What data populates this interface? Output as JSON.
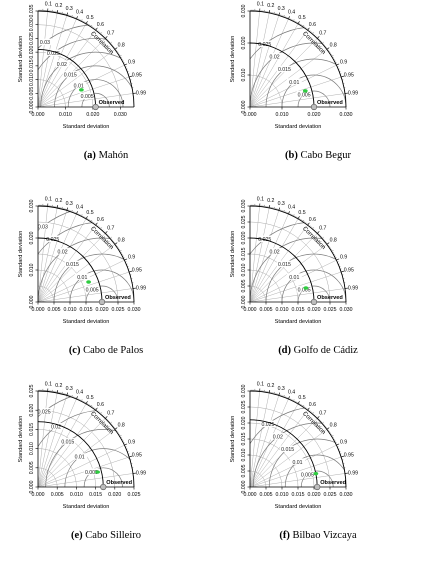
{
  "figure": {
    "common": {
      "xlabel": "Standard deviation",
      "ylabel": "Standard deviation",
      "arc_label": "Correlation",
      "ref_label": "Observed",
      "corr_labels": [
        "0.1",
        "0.2",
        "0.3",
        "0.4",
        "0.5",
        "0.6",
        "0.7",
        "0.8",
        "0.9",
        "0.95",
        "0.99"
      ],
      "model_color": "#2ecc40"
    }
  },
  "chart_data": [
    {
      "type": "scatter",
      "subtype": "taylor",
      "panel_id": "(a)",
      "caption": "Mahón",
      "axis_max": 0.035,
      "xticks": [
        "0.000",
        "0.010",
        "0.020",
        "0.030"
      ],
      "yticks": [
        "0.000",
        "0.005",
        "0.010",
        "0.015",
        "0.020",
        "0.025",
        "0.030",
        "0.035"
      ],
      "observed_std": 0.021,
      "rmsd_levels": [
        0.005,
        0.01,
        0.015,
        0.02,
        0.025,
        0.03
      ],
      "model": {
        "std": 0.017,
        "corr": 0.93
      }
    },
    {
      "type": "scatter",
      "subtype": "taylor",
      "panel_id": "(b)",
      "caption": "Cabo Begur",
      "axis_max": 0.03,
      "xticks": [
        "0.000",
        "0.010",
        "0.020",
        "0.030"
      ],
      "yticks": [
        "0.000",
        "0.010",
        "0.020",
        "0.030"
      ],
      "observed_std": 0.02,
      "rmsd_levels": [
        0.005,
        0.01,
        0.015,
        0.02,
        0.025
      ],
      "model": {
        "std": 0.018,
        "corr": 0.96
      }
    },
    {
      "type": "scatter",
      "subtype": "taylor",
      "panel_id": "(c)",
      "caption": "Cabo de Palos",
      "axis_max": 0.03,
      "xticks": [
        "0.000",
        "0.005",
        "0.010",
        "0.015",
        "0.020",
        "0.025",
        "0.030"
      ],
      "yticks": [
        "0.000",
        "0.010",
        "0.020",
        "0.030"
      ],
      "observed_std": 0.02,
      "rmsd_levels": [
        0.005,
        0.01,
        0.015,
        0.02,
        0.025,
        0.03
      ],
      "model": {
        "std": 0.017,
        "corr": 0.93
      }
    },
    {
      "type": "scatter",
      "subtype": "taylor",
      "panel_id": "(d)",
      "caption": "Golfo de Cádiz",
      "axis_max": 0.03,
      "xticks": [
        "0.000",
        "0.005",
        "0.010",
        "0.015",
        "0.020",
        "0.025",
        "0.030"
      ],
      "yticks": [
        "0.000",
        "0.005",
        "0.010",
        "0.015",
        "0.020",
        "0.025",
        "0.030"
      ],
      "observed_std": 0.02,
      "rmsd_levels": [
        0.005,
        0.01,
        0.015,
        0.02,
        0.025
      ],
      "model": {
        "std": 0.018,
        "corr": 0.97
      }
    },
    {
      "type": "scatter",
      "subtype": "taylor",
      "panel_id": "(e)",
      "caption": "Cabo Silleiro",
      "axis_max": 0.025,
      "xticks": [
        "0.000",
        "0.005",
        "0.010",
        "0.015",
        "0.020",
        "0.025"
      ],
      "yticks": [
        "0.000",
        "0.005",
        "0.010",
        "0.015",
        "0.020",
        "0.025"
      ],
      "observed_std": 0.017,
      "rmsd_levels": [
        0.005,
        0.01,
        0.015,
        0.02,
        0.025
      ],
      "model": {
        "std": 0.016,
        "corr": 0.97
      }
    },
    {
      "type": "scatter",
      "subtype": "taylor",
      "panel_id": "(f)",
      "caption": "Bilbao Vizcaya",
      "axis_max": 0.03,
      "xticks": [
        "0.000",
        "0.005",
        "0.010",
        "0.015",
        "0.020",
        "0.025",
        "0.030"
      ],
      "yticks": [
        "0.000",
        "0.005",
        "0.010",
        "0.015",
        "0.020",
        "0.025",
        "0.030"
      ],
      "observed_std": 0.021,
      "rmsd_levels": [
        0.005,
        0.01,
        0.015,
        0.02,
        0.025
      ],
      "model": {
        "std": 0.021,
        "corr": 0.98
      }
    }
  ]
}
